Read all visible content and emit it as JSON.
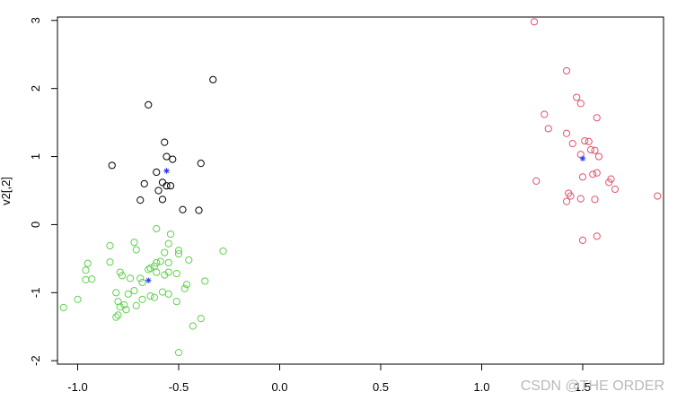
{
  "chart_data": {
    "type": "scatter",
    "ylabel": "v2[,2]",
    "xlabel": "",
    "xlim": [
      -1.1,
      1.9
    ],
    "ylim": [
      -2.05,
      3.05
    ],
    "x_ticks": [
      -1.0,
      -0.5,
      0.0,
      0.5,
      1.0,
      1.5
    ],
    "x_tick_labels": [
      "-1.0",
      "-0.5",
      "0.0",
      "0.5",
      "1.0",
      "1.5"
    ],
    "y_ticks": [
      -2,
      -1,
      0,
      1,
      2,
      3
    ],
    "y_tick_labels": [
      "-2",
      "-1",
      "0",
      "1",
      "2",
      "3"
    ],
    "grid": false,
    "clusters": [
      {
        "color": "#000000",
        "points": [
          [
            -0.33,
            2.13
          ],
          [
            -0.65,
            1.76
          ],
          [
            -0.57,
            1.21
          ],
          [
            -0.56,
            1.0
          ],
          [
            -0.53,
            0.96
          ],
          [
            -0.39,
            0.9
          ],
          [
            -0.83,
            0.87
          ],
          [
            -0.61,
            0.77
          ],
          [
            -0.67,
            0.6
          ],
          [
            -0.58,
            0.62
          ],
          [
            -0.56,
            0.57
          ],
          [
            -0.54,
            0.57
          ],
          [
            -0.6,
            0.5
          ],
          [
            -0.69,
            0.36
          ],
          [
            -0.58,
            0.37
          ],
          [
            -0.48,
            0.22
          ],
          [
            -0.4,
            0.21
          ]
        ],
        "center": [
          -0.56,
          0.79
        ]
      },
      {
        "color": "#df536b",
        "points": [
          [
            1.26,
            2.98
          ],
          [
            1.42,
            2.26
          ],
          [
            1.47,
            1.87
          ],
          [
            1.49,
            1.78
          ],
          [
            1.31,
            1.62
          ],
          [
            1.57,
            1.57
          ],
          [
            1.33,
            1.41
          ],
          [
            1.42,
            1.34
          ],
          [
            1.51,
            1.23
          ],
          [
            1.53,
            1.22
          ],
          [
            1.45,
            1.19
          ],
          [
            1.54,
            1.1
          ],
          [
            1.56,
            1.09
          ],
          [
            1.49,
            1.03
          ],
          [
            1.58,
            1.0
          ],
          [
            1.55,
            0.74
          ],
          [
            1.57,
            0.76
          ],
          [
            1.5,
            0.7
          ],
          [
            1.64,
            0.67
          ],
          [
            1.63,
            0.62
          ],
          [
            1.27,
            0.64
          ],
          [
            1.66,
            0.52
          ],
          [
            1.43,
            0.46
          ],
          [
            1.44,
            0.42
          ],
          [
            1.87,
            0.42
          ],
          [
            1.49,
            0.38
          ],
          [
            1.42,
            0.34
          ],
          [
            1.56,
            0.37
          ],
          [
            1.57,
            -0.17
          ],
          [
            1.5,
            -0.23
          ]
        ],
        "center": [
          1.5,
          0.97
        ]
      },
      {
        "color": "#61d04f",
        "points": [
          [
            -0.61,
            -0.06
          ],
          [
            -0.54,
            -0.14
          ],
          [
            -0.55,
            -0.28
          ],
          [
            -0.72,
            -0.26
          ],
          [
            -0.84,
            -0.31
          ],
          [
            -0.71,
            -0.37
          ],
          [
            -0.5,
            -0.38
          ],
          [
            -0.5,
            -0.43
          ],
          [
            -0.28,
            -0.39
          ],
          [
            -0.57,
            -0.41
          ],
          [
            -0.95,
            -0.57
          ],
          [
            -0.96,
            -0.67
          ],
          [
            -0.84,
            -0.55
          ],
          [
            -0.59,
            -0.54
          ],
          [
            -0.61,
            -0.56
          ],
          [
            -0.45,
            -0.52
          ],
          [
            -0.55,
            -0.56
          ],
          [
            -0.62,
            -0.61
          ],
          [
            -0.64,
            -0.64
          ],
          [
            -0.65,
            -0.66
          ],
          [
            -0.79,
            -0.7
          ],
          [
            -0.61,
            -0.7
          ],
          [
            -0.55,
            -0.7
          ],
          [
            -0.51,
            -0.72
          ],
          [
            -0.78,
            -0.75
          ],
          [
            -0.96,
            -0.81
          ],
          [
            -0.93,
            -0.8
          ],
          [
            -0.74,
            -0.79
          ],
          [
            -0.69,
            -0.79
          ],
          [
            -0.57,
            -0.74
          ],
          [
            -0.68,
            -0.85
          ],
          [
            -0.37,
            -0.83
          ],
          [
            -0.46,
            -0.88
          ],
          [
            -0.47,
            -0.94
          ],
          [
            -0.72,
            -0.97
          ],
          [
            -0.75,
            -1.02
          ],
          [
            -0.81,
            -1.0
          ],
          [
            -0.58,
            -0.99
          ],
          [
            -0.55,
            -1.02
          ],
          [
            -0.64,
            -1.05
          ],
          [
            -0.62,
            -1.07
          ],
          [
            -1.0,
            -1.1
          ],
          [
            -0.8,
            -1.13
          ],
          [
            -0.68,
            -1.1
          ],
          [
            -0.51,
            -1.13
          ],
          [
            -0.77,
            -1.18
          ],
          [
            -0.71,
            -1.19
          ],
          [
            -1.07,
            -1.22
          ],
          [
            -0.79,
            -1.21
          ],
          [
            -0.76,
            -1.25
          ],
          [
            -0.81,
            -1.36
          ],
          [
            -0.39,
            -1.38
          ],
          [
            -0.8,
            -1.33
          ],
          [
            -0.43,
            -1.49
          ],
          [
            -0.5,
            -1.88
          ]
        ],
        "center": [
          -0.65,
          -0.82
        ]
      }
    ],
    "center_color": "#2b3aff"
  },
  "watermark": "CSDN @THE ORDER"
}
